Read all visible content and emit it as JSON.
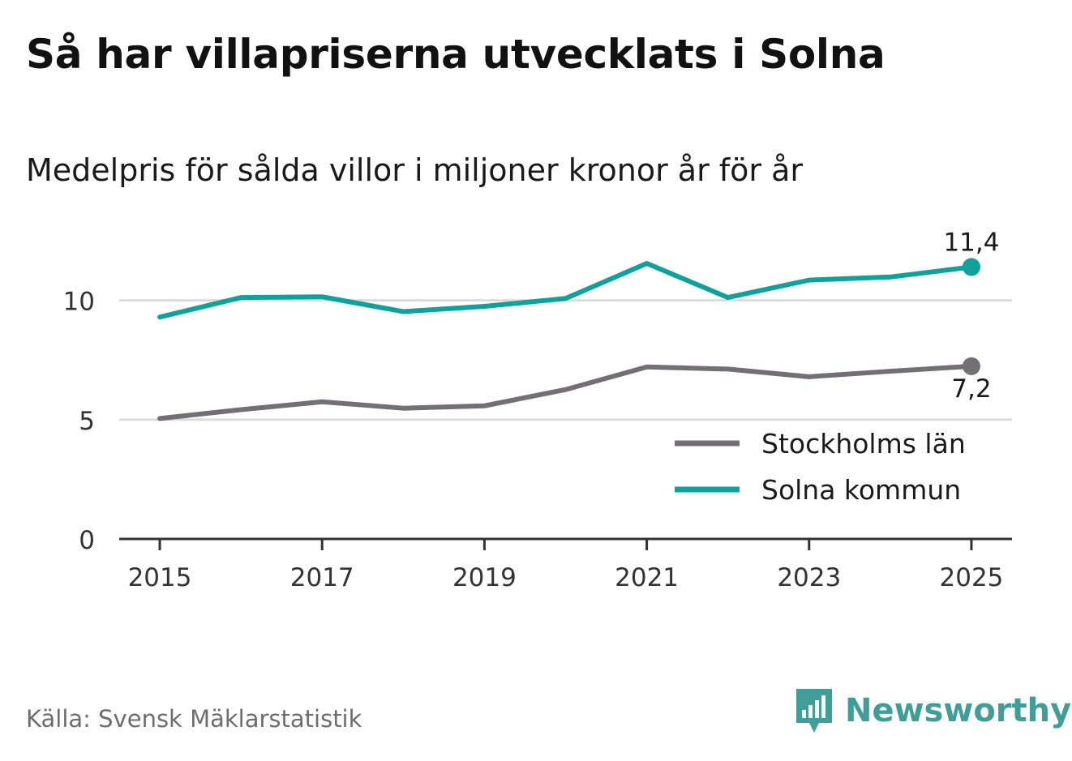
{
  "header": {
    "title": "Så har villapriserna utvecklats i Solna",
    "subtitle": "Medelpris för sålda villor i miljoner kronor år för år"
  },
  "footer": {
    "source": "Källa: Svensk Mäklarstatistik",
    "brand": "Newsworthy",
    "brand_color": "#3f9f98"
  },
  "chart_data": {
    "type": "line",
    "title": "Så har villapriserna utvecklats i Solna",
    "subtitle": "Medelpris för sålda villor i miljoner kronor år för år",
    "x": [
      2015,
      2016,
      2017,
      2018,
      2019,
      2020,
      2021,
      2022,
      2023,
      2024,
      2025
    ],
    "x_ticks": [
      "2015",
      "2017",
      "2019",
      "2021",
      "2023",
      "2025"
    ],
    "y_ticks": [
      "0",
      "5",
      "10"
    ],
    "ylim": [
      0,
      12.4
    ],
    "xlim": [
      2014.5,
      2025.5
    ],
    "grid": true,
    "legend_position": "bottom-right",
    "series": [
      {
        "name": "Stockholms län",
        "color": "#727075",
        "values": [
          5.05,
          5.42,
          5.75,
          5.48,
          5.58,
          6.26,
          7.21,
          7.12,
          6.8,
          7.03,
          7.24
        ],
        "end_label": "7,2",
        "end_label_pos": "below"
      },
      {
        "name": "Solna kommun",
        "color": "#0ea29a",
        "values": [
          9.3,
          10.12,
          10.15,
          9.53,
          9.75,
          10.08,
          11.55,
          10.12,
          10.85,
          10.98,
          11.4
        ],
        "end_label": "11,4",
        "end_label_pos": "above"
      }
    ]
  }
}
